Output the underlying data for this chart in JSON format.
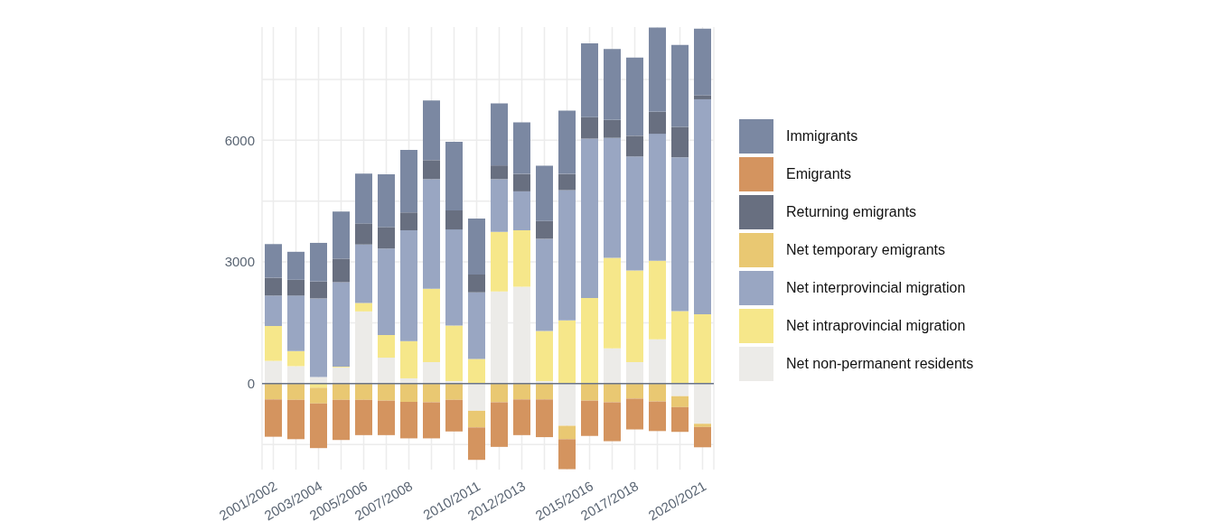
{
  "chart_data": {
    "type": "bar",
    "stacked": true,
    "categories": [
      "2001/2002",
      null,
      "2003/2004",
      null,
      "2005/2006",
      null,
      "2007/2008",
      null,
      null,
      "2010/2011",
      null,
      "2012/2013",
      null,
      null,
      "2015/2016",
      null,
      "2017/2018",
      null,
      null,
      "2020/2021"
    ],
    "series": [
      {
        "name": "Net non-permanent residents",
        "color": "#ecebe8",
        "values": [
          560,
          430,
          160,
          400,
          1780,
          640,
          130,
          530,
          60,
          -670,
          2270,
          2390,
          60,
          -1040,
          0,
          870,
          530,
          1090,
          -310,
          -990
        ]
      },
      {
        "name": "Net intraprovincial migration",
        "color": "#f6e78a",
        "values": [
          860,
          370,
          -100,
          20,
          210,
          560,
          920,
          1810,
          1370,
          610,
          1470,
          1390,
          1240,
          1560,
          2110,
          2230,
          2260,
          1940,
          1790,
          1710
        ]
      },
      {
        "name": "Net interprovincial migration",
        "color": "#99a6c2",
        "values": [
          750,
          1370,
          1940,
          2080,
          1440,
          2130,
          2730,
          2700,
          2370,
          1640,
          1300,
          960,
          2270,
          3210,
          3930,
          2960,
          2810,
          3130,
          3790,
          5300
        ]
      },
      {
        "name": "Net temporary emigrants",
        "color": "#e9c872",
        "values": [
          -390,
          -400,
          -390,
          -400,
          -400,
          -420,
          -450,
          -460,
          -400,
          -410,
          -460,
          -390,
          -390,
          -330,
          -420,
          -460,
          -370,
          -440,
          -270,
          -80
        ]
      },
      {
        "name": "Returning emigrants",
        "color": "#686f80",
        "values": [
          440,
          390,
          420,
          580,
          520,
          530,
          440,
          470,
          470,
          440,
          340,
          430,
          440,
          400,
          530,
          440,
          510,
          540,
          750,
          100
        ]
      },
      {
        "name": "Emigrants",
        "color": "#d4945f",
        "values": [
          -920,
          -970,
          -1100,
          -990,
          -870,
          -850,
          -900,
          -890,
          -780,
          -800,
          -1100,
          -880,
          -930,
          -740,
          -870,
          -960,
          -760,
          -730,
          -610,
          -500
        ]
      },
      {
        "name": "Immigrants",
        "color": "#7b88a2",
        "values": [
          830,
          690,
          950,
          1160,
          1230,
          1300,
          1540,
          1470,
          1690,
          1380,
          1530,
          1270,
          1360,
          1560,
          1820,
          1750,
          1930,
          2080,
          2020,
          1640
        ]
      }
    ],
    "ylim": [
      -2120,
      8790
    ],
    "yticks": [
      {
        "value": -1500,
        "label": null
      },
      0,
      {
        "value": 1500,
        "label": null
      },
      3000,
      {
        "value": 4500,
        "label": null
      },
      6000,
      {
        "value": 7500,
        "label": null
      }
    ],
    "ref_lines": [
      {
        "axis": "y",
        "value": 0,
        "color": "#6b7588"
      }
    ],
    "grid": true,
    "legend": "right"
  }
}
